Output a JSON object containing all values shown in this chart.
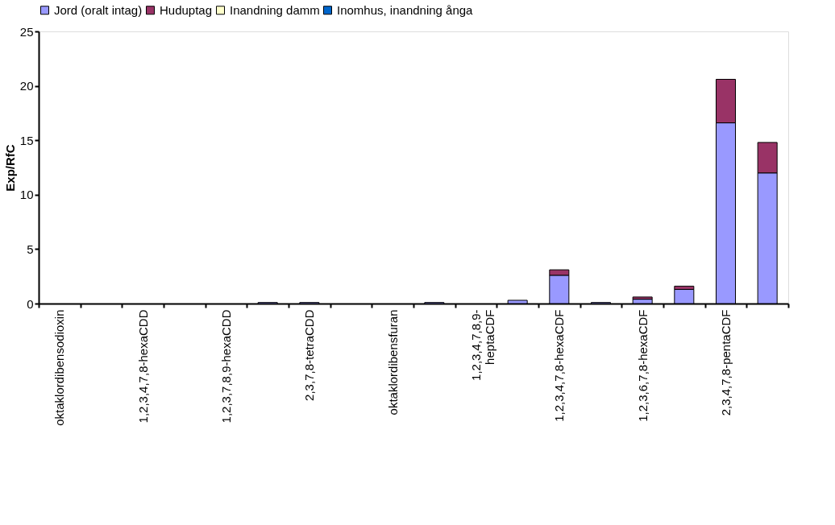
{
  "chart_data": {
    "type": "bar",
    "stacked": true,
    "ylabel": "Exp/RfC",
    "categories": [
      "oktaklordibensodioxin",
      null,
      "1,2,3,4,7,8-hexaCDD",
      null,
      "1,2,3,7,8,9-hexaCDD",
      null,
      "2,3,7,8-tetraCDD",
      null,
      "oktaklordibensfuran",
      null,
      "1,2,3,4,7,8,9-\nheptaCDF",
      null,
      "1,2,3,4,7,8-hexaCDF",
      null,
      "1,2,3,6,7,8-hexaCDF",
      null,
      "2,3,4,7,8-pentaCDF",
      null
    ],
    "series": [
      {
        "name": "Jord (oralt intag)",
        "color": "#9999ff",
        "values": [
          0,
          0,
          0,
          0,
          0,
          0.1,
          0.1,
          0,
          0,
          0.1,
          0,
          0.3,
          2.6,
          0.1,
          0.4,
          1.3,
          16.6,
          12.0
        ]
      },
      {
        "name": "Huduptag",
        "color": "#993366",
        "values": [
          0,
          0,
          0,
          0,
          0,
          0,
          0,
          0,
          0,
          0,
          0,
          0,
          0.5,
          0,
          0.2,
          0.3,
          4.0,
          2.8
        ]
      },
      {
        "name": "Inandning damm",
        "color": "#ffffcc",
        "values": [
          0,
          0,
          0,
          0,
          0,
          0,
          0,
          0,
          0,
          0,
          0,
          0,
          0,
          0,
          0,
          0,
          0,
          0
        ]
      },
      {
        "name": "Inomhus, inandning ånga",
        "color": "#0066cc",
        "values": [
          0,
          0,
          0,
          0,
          0,
          0,
          0,
          0,
          0,
          0,
          0,
          0,
          0,
          0,
          0,
          0,
          0,
          0
        ]
      }
    ],
    "ylim": [
      0,
      25
    ],
    "yticks": [
      0,
      5,
      10,
      15,
      20,
      25
    ],
    "grid": false,
    "legend": "top"
  }
}
